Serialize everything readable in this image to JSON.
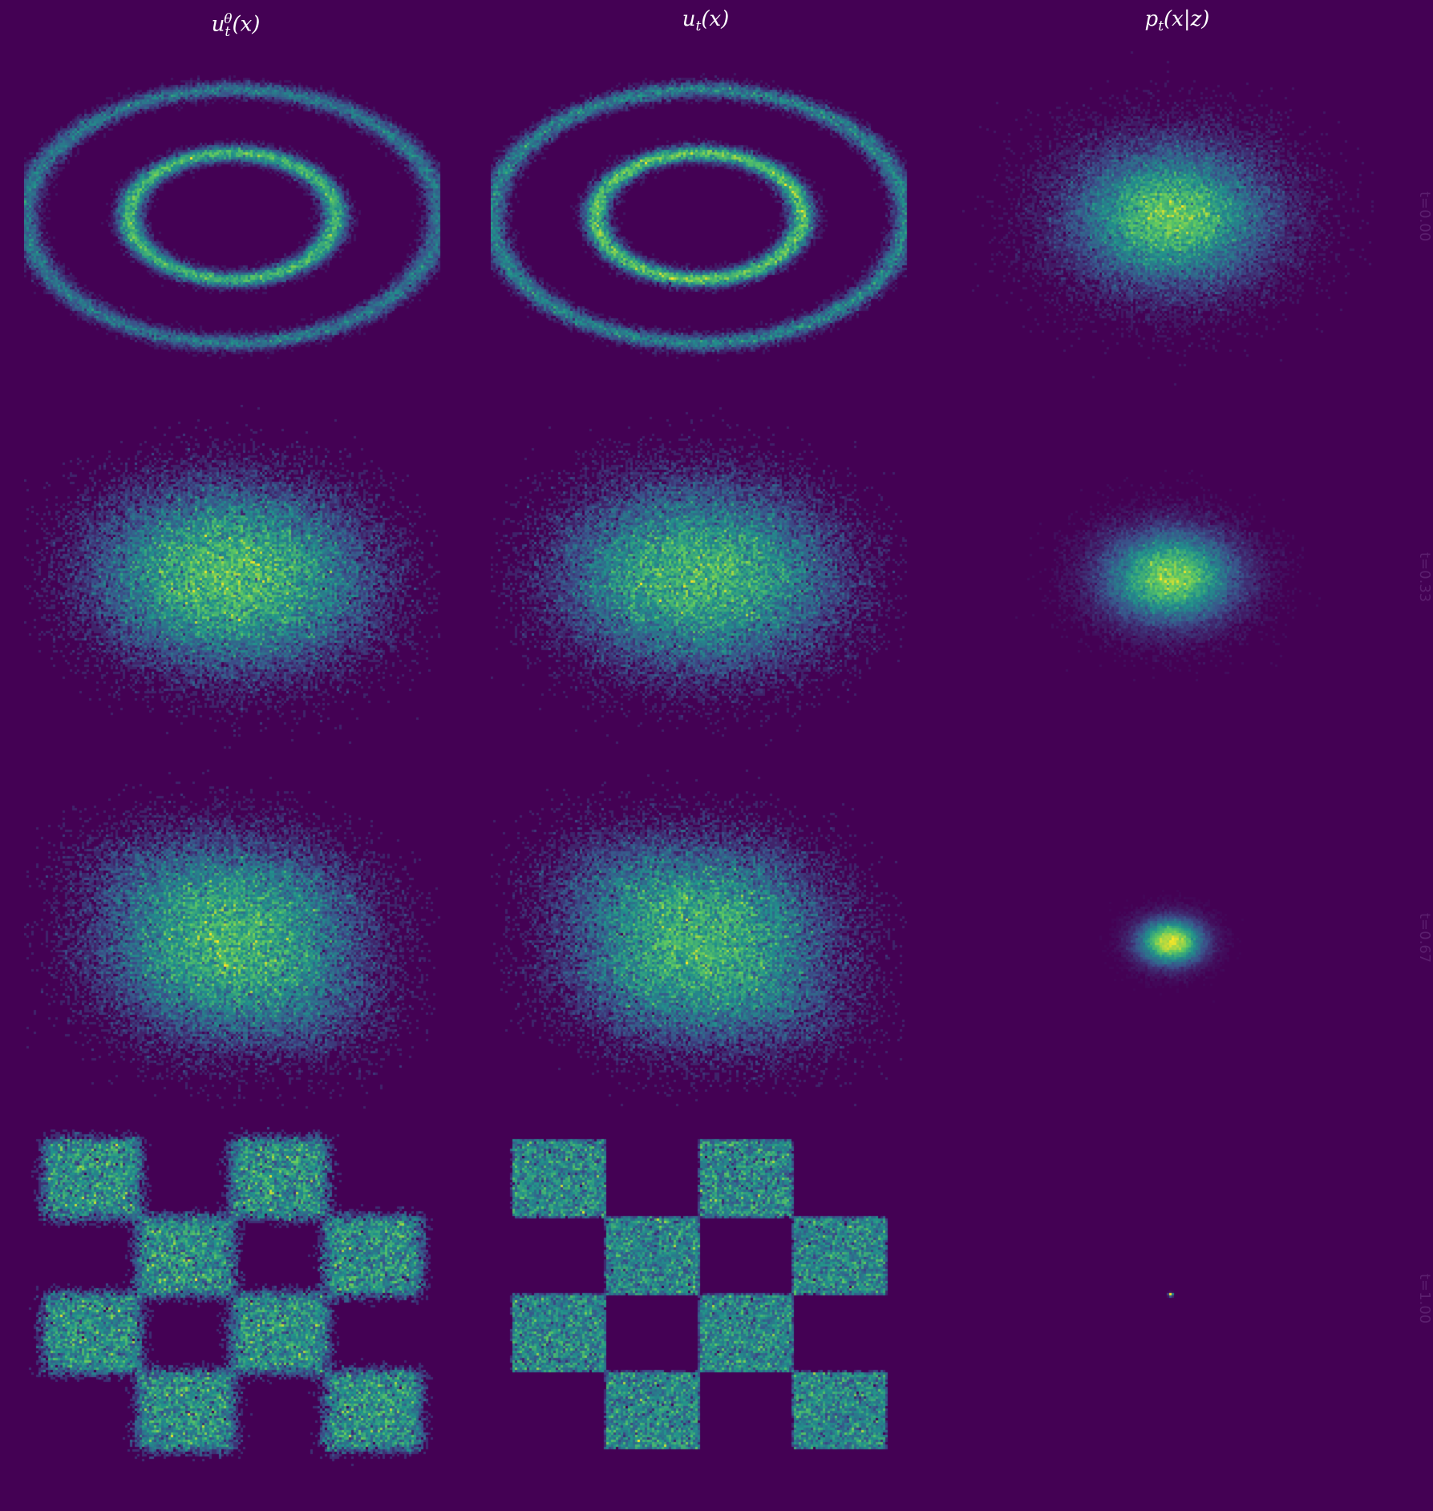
{
  "chart_data": {
    "type": "heatmap",
    "description_kind": "grid of 2D sample-density histograms",
    "colormap": "viridis",
    "colors": {
      "background": "#440154",
      "low": "#3b528b",
      "mid": "#21918c",
      "high": "#fde725",
      "title": "#ffffff"
    },
    "grid": false,
    "axes_visible": false,
    "columns": [
      {
        "key": "model",
        "title_main": "u",
        "title_sub": "t",
        "title_sup": "θ",
        "title_rest": "(x)"
      },
      {
        "key": "target",
        "title_main": "u",
        "title_sub": "t",
        "title_sup": "",
        "title_rest": "(x)"
      },
      {
        "key": "conditional",
        "title_main": "p",
        "title_sub": "t",
        "title_sup": "",
        "title_rest": "(x|z)"
      }
    ],
    "rows": [
      {
        "t_label": "t=0.00",
        "t": 0.0
      },
      {
        "t_label": "t=0.33",
        "t": 0.33
      },
      {
        "t_label": "t=0.67",
        "t": 0.67
      },
      {
        "t_label": "t=1.00",
        "t": 1.0
      }
    ],
    "panels": [
      {
        "row": 0,
        "col": 0,
        "pattern": "two concentric rings",
        "ring_radii": [
          0.5,
          1.0
        ]
      },
      {
        "row": 0,
        "col": 1,
        "pattern": "two concentric rings",
        "ring_radii": [
          0.5,
          1.0
        ]
      },
      {
        "row": 0,
        "col": 2,
        "pattern": "gaussian blob",
        "sigma": 1.0
      },
      {
        "row": 1,
        "col": 0,
        "pattern": "diffuse blend rings→checkerboard"
      },
      {
        "row": 1,
        "col": 1,
        "pattern": "diffuse blend rings→checkerboard"
      },
      {
        "row": 1,
        "col": 2,
        "pattern": "gaussian blob",
        "sigma": 0.67
      },
      {
        "row": 2,
        "col": 0,
        "pattern": "diffuse blend rings→checkerboard"
      },
      {
        "row": 2,
        "col": 1,
        "pattern": "diffuse blend rings→checkerboard"
      },
      {
        "row": 2,
        "col": 2,
        "pattern": "gaussian blob",
        "sigma": 0.33
      },
      {
        "row": 3,
        "col": 0,
        "pattern": "4x4 checkerboard (learned, noisy)"
      },
      {
        "row": 3,
        "col": 1,
        "pattern": "4x4 checkerboard"
      },
      {
        "row": 3,
        "col": 2,
        "pattern": "point mass"
      }
    ]
  }
}
